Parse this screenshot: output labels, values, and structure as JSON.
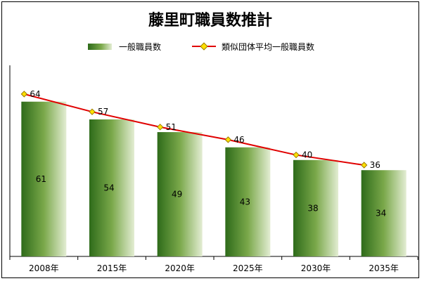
{
  "chart_data": {
    "type": "bar",
    "title": "藤里町職員数推計",
    "categories": [
      "2008年",
      "2015年",
      "2020年",
      "2025年",
      "2030年",
      "2035年"
    ],
    "series": [
      {
        "name": "一般職員数",
        "kind": "bar",
        "values": [
          61,
          54,
          49,
          43,
          38,
          34
        ]
      },
      {
        "name": "類似団体平均一般職員数",
        "kind": "line",
        "values": [
          64,
          57,
          51,
          46,
          40,
          36
        ]
      }
    ],
    "ylim": [
      0,
      72
    ],
    "xlabel": "",
    "ylabel": "",
    "grid": false,
    "legend_position": "top"
  },
  "colors": {
    "bar_dark": "#2e6b1a",
    "bar_mid": "#7aa84a",
    "bar_light": "#e3edd3",
    "line": "#e00000",
    "marker_fill": "#ffe000",
    "marker_stroke": "#9a7b00"
  }
}
